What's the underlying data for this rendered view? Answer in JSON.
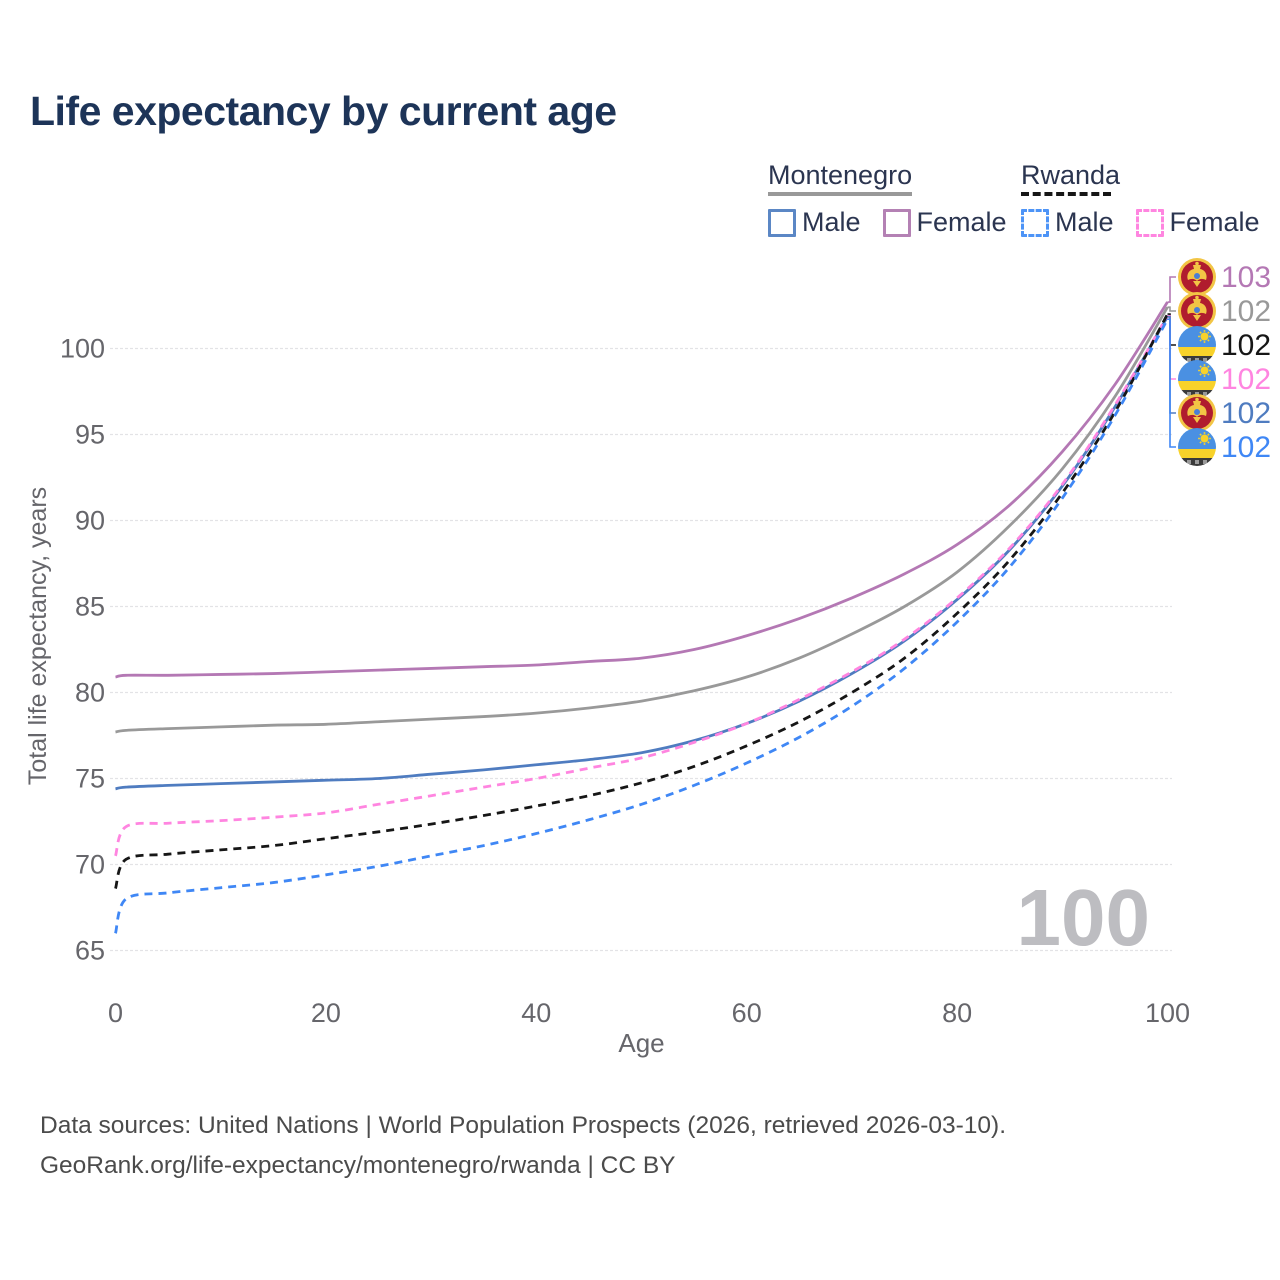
{
  "title": "Life expectancy by current age",
  "legend": {
    "groups": [
      {
        "name": "Montenegro",
        "line_style": "solid",
        "line_color": "#999999",
        "items": [
          {
            "label": "Male",
            "box_color": "#5b87c5",
            "dashed": false
          },
          {
            "label": "Female",
            "box_color": "#b481b4",
            "dashed": false
          }
        ]
      },
      {
        "name": "Rwanda",
        "line_style": "dashed",
        "line_color": "#161616",
        "items": [
          {
            "label": "Male",
            "box_color": "#4d94f7",
            "dashed": true
          },
          {
            "label": "Female",
            "box_color": "#ff85e0",
            "dashed": true
          }
        ]
      }
    ]
  },
  "watermark": "100",
  "footer": {
    "line1": "Data sources: United Nations | World Population Prospects (2026, retrieved 2026-03-10).",
    "line2": "GeoRank.org/life-expectancy/montenegro/rwanda | CC BY"
  },
  "chart_data": {
    "type": "line",
    "title": "Life expectancy by current age",
    "xlabel": "Age",
    "ylabel": "Total life expectancy, years",
    "xlim": [
      0,
      100
    ],
    "ylim": [
      64,
      104
    ],
    "xticks": [
      0,
      20,
      40,
      60,
      80,
      100
    ],
    "yticks": [
      65,
      70,
      75,
      80,
      85,
      90,
      95,
      100
    ],
    "grid": "horizontal-only",
    "legend_position": "top-right",
    "x": [
      0,
      1,
      5,
      10,
      15,
      20,
      25,
      30,
      35,
      40,
      45,
      50,
      55,
      60,
      65,
      70,
      75,
      80,
      85,
      90,
      95,
      100
    ],
    "series": [
      {
        "name": "Montenegro Female",
        "country": "Montenegro",
        "sex": "Female",
        "color": "#b478b4",
        "dashed": false,
        "flag": "montenegro-flag-icon",
        "end_label": "103",
        "values": [
          80.9,
          81.0,
          81.0,
          81.05,
          81.1,
          81.2,
          81.3,
          81.4,
          81.5,
          81.6,
          81.8,
          82.0,
          82.5,
          83.3,
          84.3,
          85.5,
          86.9,
          88.6,
          90.9,
          94.0,
          97.9,
          102.7
        ]
      },
      {
        "name": "Montenegro All",
        "country": "Montenegro",
        "sex": "All",
        "color": "#999999",
        "dashed": false,
        "flag": "montenegro-flag-icon",
        "end_label": "102",
        "values": [
          77.7,
          77.8,
          77.9,
          78.0,
          78.1,
          78.15,
          78.3,
          78.45,
          78.6,
          78.8,
          79.1,
          79.5,
          80.1,
          80.9,
          82.0,
          83.4,
          85.0,
          87.0,
          89.7,
          93.0,
          97.2,
          102.4
        ]
      },
      {
        "name": "Montenegro Male",
        "country": "Montenegro",
        "sex": "Male",
        "color": "#4f7cc0",
        "dashed": false,
        "flag": "montenegro-flag-icon",
        "end_label": "102",
        "values": [
          74.4,
          74.5,
          74.6,
          74.7,
          74.8,
          74.9,
          75.0,
          75.25,
          75.5,
          75.8,
          76.1,
          76.5,
          77.2,
          78.2,
          79.5,
          81.1,
          83.0,
          85.4,
          88.3,
          92.0,
          96.6,
          101.85
        ]
      },
      {
        "name": "Rwanda Female",
        "country": "Rwanda",
        "sex": "Female",
        "color": "#ff85e0",
        "dashed": true,
        "flag": "rwanda-flag-icon",
        "end_label": "102",
        "values": [
          70.5,
          72.2,
          72.4,
          72.55,
          72.75,
          73.0,
          73.5,
          74.0,
          74.5,
          75.0,
          75.6,
          76.2,
          77.1,
          78.2,
          79.6,
          81.2,
          83.1,
          85.5,
          88.4,
          92.1,
          96.7,
          101.9
        ]
      },
      {
        "name": "Rwanda All",
        "country": "Rwanda",
        "sex": "All",
        "color": "#161616",
        "dashed": true,
        "flag": "rwanda-flag-icon",
        "end_label": "102",
        "values": [
          68.6,
          70.3,
          70.6,
          70.85,
          71.1,
          71.5,
          71.9,
          72.35,
          72.85,
          73.4,
          74.0,
          74.75,
          75.7,
          76.9,
          78.3,
          80.0,
          82.0,
          84.6,
          87.7,
          91.6,
          96.3,
          102.0
        ]
      },
      {
        "name": "Rwanda Male",
        "country": "Rwanda",
        "sex": "Male",
        "color": "#3f87f5",
        "dashed": true,
        "flag": "rwanda-flag-icon",
        "end_label": "102",
        "values": [
          66.0,
          68.0,
          68.35,
          68.65,
          68.95,
          69.4,
          69.9,
          70.5,
          71.1,
          71.8,
          72.6,
          73.5,
          74.6,
          75.9,
          77.4,
          79.2,
          81.4,
          84.1,
          87.3,
          91.3,
          96.1,
          101.7
        ]
      }
    ]
  }
}
